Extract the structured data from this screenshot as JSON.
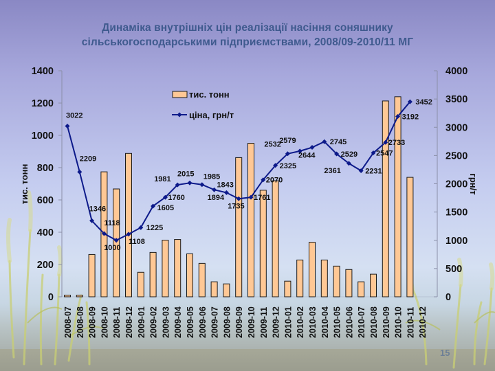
{
  "slide": {
    "title_line1": "Динаміка внутрішніх цін реалізації насіння соняшнику",
    "title_line2": "сільськогосподарськими підприємствами, 2008/09-2010/11 МГ",
    "page_number": "15"
  },
  "colors": {
    "bar_fill": "#ffc895",
    "bar_stroke": "#1a1a1a",
    "line": "#0d1a8a",
    "title": "#3f5a8e",
    "axis": "#8b8fa8"
  },
  "chart_data": {
    "type": "bar+line",
    "title": "Динаміка внутрішніх цін реалізації насіння соняшнику сільськогосподарськими підприємствами, 2008/09-2010/11 МГ",
    "categories": [
      "2008-07",
      "2008-08",
      "2008-09",
      "2008-10",
      "2008-11",
      "2008-12",
      "2009-01",
      "2009-02",
      "2009-03",
      "2009-04",
      "2009-05",
      "2009-06",
      "2009-07",
      "2009-08",
      "2009-09",
      "2009-10",
      "2009-11",
      "2009-12",
      "2010-01",
      "2010-02",
      "2010-03",
      "2010-04",
      "2010-05",
      "2010-06",
      "2010-07",
      "2010-08",
      "2010-09",
      "2010-10",
      "2010-11",
      "2010-12"
    ],
    "series": [
      {
        "name": "тис. тонн",
        "type": "bar",
        "axis": "left",
        "values": [
          10,
          10,
          262,
          774,
          668,
          888,
          152,
          275,
          351,
          355,
          266,
          207,
          93,
          80,
          862,
          951,
          660,
          719,
          97,
          228,
          338,
          228,
          190,
          169,
          93,
          140,
          1213,
          1239,
          740,
          null
        ]
      },
      {
        "name": "ціна, грн/т",
        "type": "line",
        "axis": "right",
        "values": [
          3022,
          2209,
          1346,
          1118,
          1000,
          1108,
          1225,
          1605,
          1760,
          1981,
          2015,
          1985,
          1894,
          1843,
          1735,
          1761,
          2070,
          2325,
          2532,
          2579,
          2644,
          2745,
          2529,
          2361,
          2231,
          2547,
          2733,
          3192,
          3452,
          null
        ],
        "labels": [
          "3022",
          "2209",
          "1346",
          "1118",
          "1000",
          "1108",
          "1225",
          "1605",
          "1760",
          "1981",
          "2015",
          "1985",
          "1894",
          "1843",
          "1735",
          "1761",
          "2070",
          "2325",
          "2532",
          "2579",
          "2644",
          "2745",
          "2529",
          "2361",
          "2231",
          "2547",
          "2733",
          "3192",
          "3452",
          ""
        ]
      }
    ],
    "ylabel_left": "тис. тонн",
    "ylabel_right": "грн/т",
    "ylim_left": [
      0,
      1400
    ],
    "yticks_left": [
      0,
      200,
      400,
      600,
      800,
      1000,
      1200,
      1400
    ],
    "ylim_right": [
      0,
      4000
    ],
    "yticks_right": [
      0,
      500,
      1000,
      1500,
      2000,
      2500,
      3000,
      3500,
      4000
    ],
    "legend": [
      {
        "label": "тис. тонн",
        "type": "bar"
      },
      {
        "label": "ціна, грн/т",
        "type": "line"
      }
    ],
    "legend_position": "top-center",
    "grid": false
  }
}
